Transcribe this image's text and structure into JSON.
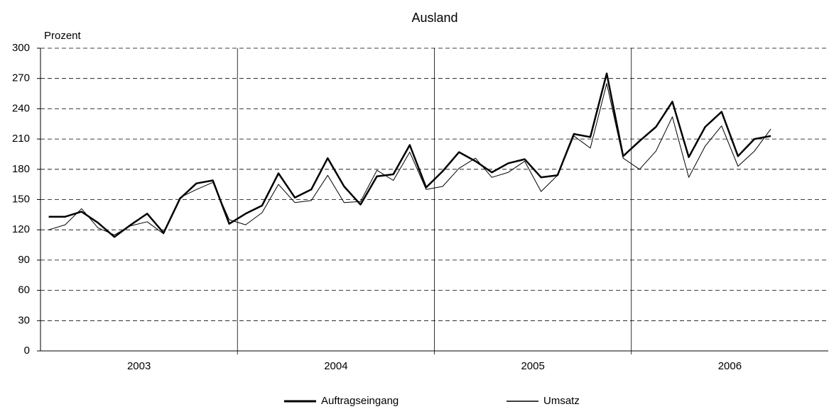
{
  "chart_data": {
    "type": "line",
    "title": "Ausland",
    "y_label": "Prozent",
    "groups": [
      "2003",
      "2004",
      "2005",
      "2006"
    ],
    "categories": [
      null,
      null,
      null,
      null,
      null,
      null,
      null,
      null,
      null,
      null,
      null,
      null,
      null,
      null,
      null,
      null,
      null,
      null,
      null,
      null,
      null,
      null,
      null,
      null,
      null,
      null,
      null,
      null,
      null,
      null,
      null,
      null,
      null,
      null,
      null,
      null,
      null,
      null,
      null,
      null,
      null,
      null,
      null,
      null,
      null
    ],
    "series": [
      {
        "name": "Auftragseingang",
        "color": "#000000",
        "width": 2.5,
        "values": [
          133,
          133,
          138,
          127,
          113,
          125,
          136,
          117,
          151,
          166,
          169,
          126,
          136,
          144,
          176,
          152,
          160,
          191,
          163,
          145,
          173,
          175,
          204,
          162,
          178,
          197,
          188,
          177,
          186,
          190,
          172,
          174,
          215,
          212,
          275,
          193,
          208,
          222,
          247,
          192,
          222,
          237,
          193,
          210,
          213
        ]
      },
      {
        "name": "Umsatz",
        "color": "#000000",
        "width": 1,
        "values": [
          120,
          125,
          141,
          122,
          115,
          124,
          128,
          116,
          152,
          160,
          167,
          130,
          125,
          137,
          165,
          147,
          149,
          174,
          147,
          148,
          179,
          169,
          197,
          160,
          163,
          181,
          191,
          172,
          177,
          188,
          158,
          174,
          213,
          201,
          265,
          191,
          180,
          198,
          232,
          172,
          203,
          223,
          183,
          198,
          220
        ]
      }
    ],
    "ylim": [
      0,
      300
    ],
    "yticks": [
      0,
      30,
      60,
      90,
      120,
      150,
      180,
      210,
      240,
      270,
      300
    ],
    "grid": true
  }
}
